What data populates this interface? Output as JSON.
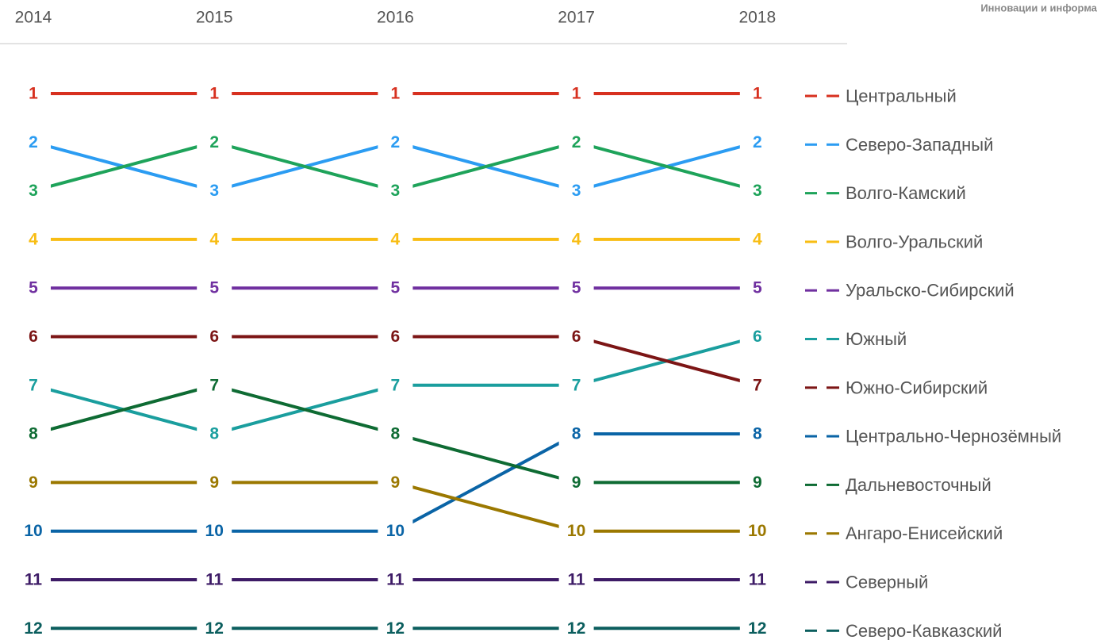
{
  "chart_data": {
    "type": "bump",
    "note": "Инновации и информа",
    "categories": [
      "2014",
      "2015",
      "2016",
      "2017",
      "2018"
    ],
    "series": [
      {
        "name": "Центральный",
        "color": "#d7301f",
        "values": [
          1,
          1,
          1,
          1,
          1
        ]
      },
      {
        "name": "Северо-Западный",
        "color": "#2b9cf2",
        "values": [
          2,
          3,
          2,
          3,
          2
        ]
      },
      {
        "name": "Волго-Камский",
        "color": "#1ea35a",
        "values": [
          3,
          2,
          3,
          2,
          3
        ]
      },
      {
        "name": "Волго-Уральский",
        "color": "#f8bd14",
        "values": [
          4,
          4,
          4,
          4,
          4
        ]
      },
      {
        "name": "Уральско-Сибирский",
        "color": "#7030a0",
        "values": [
          5,
          5,
          5,
          5,
          5
        ]
      },
      {
        "name": "Южный",
        "color": "#1a9e9e",
        "values": [
          7,
          8,
          7,
          7,
          6
        ]
      },
      {
        "name": "Южно-Сибирский",
        "color": "#7c1515",
        "values": [
          6,
          6,
          6,
          6,
          7
        ]
      },
      {
        "name": "Центрально-Чернозёмный",
        "color": "#0a64a6",
        "values": [
          10,
          10,
          10,
          8,
          8
        ]
      },
      {
        "name": "Дальневосточный",
        "color": "#0e6b33",
        "values": [
          8,
          7,
          8,
          9,
          9
        ]
      },
      {
        "name": "Ангаро-Енисейский",
        "color": "#9b7800",
        "values": [
          9,
          9,
          9,
          10,
          10
        ]
      },
      {
        "name": "Северный",
        "color": "#3d1b66",
        "values": [
          11,
          11,
          11,
          11,
          11
        ]
      },
      {
        "name": "Северо-Кавказский",
        "color": "#0b5e5e",
        "values": [
          12,
          12,
          12,
          12,
          12
        ]
      }
    ]
  }
}
